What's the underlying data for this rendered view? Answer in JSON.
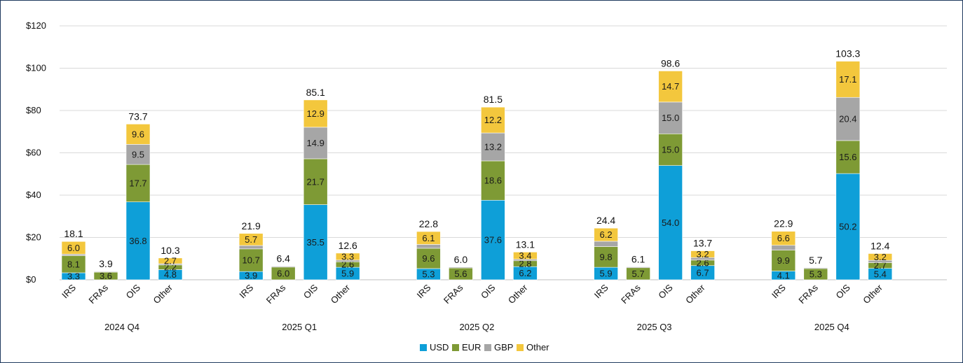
{
  "chart_data": {
    "type": "bar",
    "stacked": true,
    "title": "",
    "xlabel": "",
    "ylabel": "",
    "ylim": [
      0,
      120
    ],
    "yticks": [
      0,
      20,
      40,
      60,
      80,
      100,
      120
    ],
    "ytick_labels": [
      "$0",
      "$20",
      "$40",
      "$60",
      "$80",
      "$100",
      "$120"
    ],
    "grid": true,
    "legend_position": "bottom",
    "groups": [
      "2024 Q4",
      "2025 Q1",
      "2025 Q2",
      "2025 Q3",
      "2025 Q4"
    ],
    "categories": [
      "IRS",
      "FRAs",
      "OIS",
      "Other"
    ],
    "series": [
      {
        "name": "USD",
        "color": "#0e9fd8"
      },
      {
        "name": "EUR",
        "color": "#7e9a35"
      },
      {
        "name": "GBP",
        "color": "#a6a6a6"
      },
      {
        "name": "Other",
        "color": "#f3c73d"
      }
    ],
    "bars": [
      {
        "group": "2024 Q4",
        "category": "IRS",
        "values": [
          3.3,
          8.1,
          0.7,
          6.0
        ],
        "labels": [
          "3.3",
          "8.1",
          null,
          "6.0"
        ],
        "total": "18.1"
      },
      {
        "group": "2024 Q4",
        "category": "FRAs",
        "values": [
          0,
          3.6,
          0.3,
          0
        ],
        "labels": [
          null,
          "3.6",
          null,
          null
        ],
        "total": "3.9"
      },
      {
        "group": "2024 Q4",
        "category": "OIS",
        "values": [
          36.8,
          17.7,
          9.5,
          9.6
        ],
        "labels": [
          "36.8",
          "17.7",
          "9.5",
          "9.6"
        ],
        "total": "73.7"
      },
      {
        "group": "2024 Q4",
        "category": "Other",
        "values": [
          4.8,
          2.2,
          0.6,
          2.7
        ],
        "labels": [
          "4.8",
          "2.2",
          null,
          "2.7"
        ],
        "total": "10.3"
      },
      {
        "group": "2025 Q1",
        "category": "IRS",
        "values": [
          3.9,
          10.7,
          1.6,
          5.7
        ],
        "labels": [
          "3.9",
          "10.7",
          null,
          "5.7"
        ],
        "total": "21.9"
      },
      {
        "group": "2025 Q1",
        "category": "FRAs",
        "values": [
          0,
          6.0,
          0.4,
          0
        ],
        "labels": [
          null,
          "6.0",
          null,
          null
        ],
        "total": "6.4"
      },
      {
        "group": "2025 Q1",
        "category": "OIS",
        "values": [
          35.5,
          21.7,
          14.9,
          12.9
        ],
        "labels": [
          "35.5",
          "21.7",
          "14.9",
          "12.9"
        ],
        "total": "85.1"
      },
      {
        "group": "2025 Q1",
        "category": "Other",
        "values": [
          5.9,
          2.6,
          0.8,
          3.3
        ],
        "labels": [
          "5.9",
          "2.6",
          null,
          "3.3"
        ],
        "total": "12.6"
      },
      {
        "group": "2025 Q2",
        "category": "IRS",
        "values": [
          5.3,
          9.6,
          1.8,
          6.1
        ],
        "labels": [
          "5.3",
          "9.6",
          null,
          "6.1"
        ],
        "total": "22.8"
      },
      {
        "group": "2025 Q2",
        "category": "FRAs",
        "values": [
          0,
          5.6,
          0.4,
          0
        ],
        "labels": [
          null,
          "5.6",
          null,
          null
        ],
        "total": "6.0"
      },
      {
        "group": "2025 Q2",
        "category": "OIS",
        "values": [
          37.6,
          18.6,
          13.2,
          12.2
        ],
        "labels": [
          "37.6",
          "18.6",
          "13.2",
          "12.2"
        ],
        "total": "81.5"
      },
      {
        "group": "2025 Q2",
        "category": "Other",
        "values": [
          6.2,
          2.8,
          0.7,
          3.4
        ],
        "labels": [
          "6.2",
          "2.8",
          null,
          "3.4"
        ],
        "total": "13.1"
      },
      {
        "group": "2025 Q3",
        "category": "IRS",
        "values": [
          5.9,
          9.8,
          2.5,
          6.2
        ],
        "labels": [
          "5.9",
          "9.8",
          null,
          "6.2"
        ],
        "total": "24.4"
      },
      {
        "group": "2025 Q3",
        "category": "FRAs",
        "values": [
          0,
          5.7,
          0.4,
          0
        ],
        "labels": [
          null,
          "5.7",
          null,
          null
        ],
        "total": "6.1"
      },
      {
        "group": "2025 Q3",
        "category": "OIS",
        "values": [
          54.0,
          15.0,
          15.0,
          14.7
        ],
        "labels": [
          "54.0",
          "15.0",
          "15.0",
          "14.7"
        ],
        "total": "98.6"
      },
      {
        "group": "2025 Q3",
        "category": "Other",
        "values": [
          6.7,
          2.6,
          1.2,
          3.2
        ],
        "labels": [
          "6.7",
          "2.6",
          null,
          "3.2"
        ],
        "total": "13.7"
      },
      {
        "group": "2025 Q4",
        "category": "IRS",
        "values": [
          4.1,
          9.9,
          2.3,
          6.6
        ],
        "labels": [
          "4.1",
          "9.9",
          null,
          "6.6"
        ],
        "total": "22.9"
      },
      {
        "group": "2025 Q4",
        "category": "FRAs",
        "values": [
          0,
          5.3,
          0.4,
          0
        ],
        "labels": [
          null,
          "5.3",
          null,
          null
        ],
        "total": "5.7"
      },
      {
        "group": "2025 Q4",
        "category": "OIS",
        "values": [
          50.2,
          15.6,
          20.4,
          17.1
        ],
        "labels": [
          "50.2",
          "15.6",
          "20.4",
          "17.1"
        ],
        "total": "103.3"
      },
      {
        "group": "2025 Q4",
        "category": "Other",
        "values": [
          5.4,
          2.7,
          1.1,
          3.2
        ],
        "labels": [
          "5.4",
          "2.7",
          null,
          "3.2"
        ],
        "total": "12.4"
      }
    ]
  }
}
